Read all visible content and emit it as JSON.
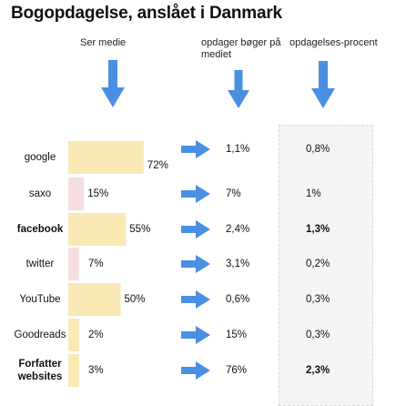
{
  "title": "Bogopdagelse, anslået i Danmark",
  "columns": {
    "seen": "Ser medie",
    "discover": "opdager bøger på mediet",
    "rate": "opdagelses-procent"
  },
  "colors": {
    "bar_default": "#f8e9b5",
    "bar_alt": "#f6dfe0",
    "arrow": "#4a90e2",
    "panel": "#f5f5f5"
  },
  "chart_data": {
    "type": "bar",
    "title": "Bogopdagelse, anslået i Danmark",
    "categories": [
      "google",
      "saxo",
      "facebook",
      "twitter",
      "YouTube",
      "Goodreads",
      "Forfatter websites"
    ],
    "series": [
      {
        "name": "Ser medie",
        "values": [
          72,
          15,
          55,
          7,
          50,
          2,
          3
        ],
        "labels": [
          "72%",
          "15%",
          "55%",
          "7%",
          "50%",
          "2%",
          "3%"
        ]
      },
      {
        "name": "opdager bøger på mediet",
        "values": [
          1.1,
          7,
          2.4,
          3.1,
          0.6,
          15,
          76
        ],
        "labels": [
          "1,1%",
          "7%",
          "2,4%",
          "3,1%",
          "0,6%",
          "15%",
          "76%"
        ]
      },
      {
        "name": "opdagelses-procent",
        "values": [
          0.8,
          1,
          1.3,
          0.2,
          0.3,
          0.3,
          2.3
        ],
        "labels": [
          "0,8%",
          "1%",
          "1,3%",
          "0,2%",
          "0,3%",
          "0,3%",
          "2,3%"
        ]
      }
    ],
    "bold_rows": [
      "facebook",
      "Forfatter websites"
    ],
    "xlim": [
      0,
      100
    ],
    "grid": false,
    "legend": "none"
  }
}
